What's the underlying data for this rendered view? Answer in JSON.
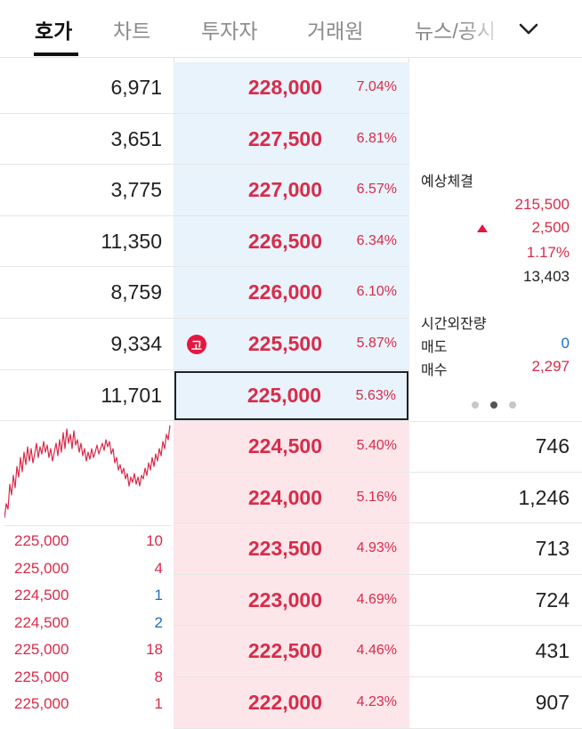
{
  "tabs": [
    {
      "label": "호가",
      "active": true
    },
    {
      "label": "차트",
      "active": false
    },
    {
      "label": "투자자",
      "active": false
    },
    {
      "label": "거래원",
      "active": false
    },
    {
      "label": "뉴스/공시",
      "active": false
    }
  ],
  "asks": [
    {
      "qty": "6,971",
      "price": "228,000",
      "pct": "7.04%"
    },
    {
      "qty": "3,651",
      "price": "227,500",
      "pct": "6.81%"
    },
    {
      "qty": "3,775",
      "price": "227,000",
      "pct": "6.57%"
    },
    {
      "qty": "11,350",
      "price": "226,500",
      "pct": "6.34%"
    },
    {
      "qty": "8,759",
      "price": "226,000",
      "pct": "6.10%"
    },
    {
      "qty": "9,334",
      "price": "225,500",
      "pct": "5.87%",
      "badge": "고"
    },
    {
      "qty": "11,701",
      "price": "225,000",
      "pct": "5.63%"
    }
  ],
  "bids": [
    {
      "price": "224,500",
      "pct": "5.40%",
      "qty": "746"
    },
    {
      "price": "224,000",
      "pct": "5.16%",
      "qty": "1,246"
    },
    {
      "price": "223,500",
      "pct": "4.93%",
      "qty": "713"
    },
    {
      "price": "223,000",
      "pct": "4.69%",
      "qty": "724"
    },
    {
      "price": "222,500",
      "pct": "4.46%",
      "qty": "431"
    },
    {
      "price": "222,000",
      "pct": "4.23%",
      "qty": "907"
    }
  ],
  "info": {
    "expected_label": "예상체결",
    "expected_price": "215,500",
    "expected_change": "2,500",
    "expected_rate": "1.17%",
    "expected_volume": "13,403",
    "after_hours_label": "시간외잔량",
    "sell_label": "매도",
    "sell_value": "0",
    "buy_label": "매수",
    "buy_value": "2,297"
  },
  "trades": [
    {
      "price": "225,000",
      "qty": "10",
      "side": "buy"
    },
    {
      "price": "225,000",
      "qty": "4",
      "side": "buy"
    },
    {
      "price": "224,500",
      "qty": "1",
      "side": "sell"
    },
    {
      "price": "224,500",
      "qty": "2",
      "side": "sell"
    },
    {
      "price": "225,000",
      "qty": "18",
      "side": "buy"
    },
    {
      "price": "225,000",
      "qty": "8",
      "side": "buy"
    },
    {
      "price": "225,000",
      "qty": "1",
      "side": "buy"
    }
  ],
  "colors": {
    "up": "#d92b4a",
    "down": "#1a6fc4",
    "ask_bg": "#e8f3fb",
    "bid_bg": "#fde6ea"
  },
  "icons": {
    "dropdown": "chevron-down-icon",
    "badge": "high-price-badge"
  },
  "pager": {
    "count": 3,
    "active": 1
  }
}
